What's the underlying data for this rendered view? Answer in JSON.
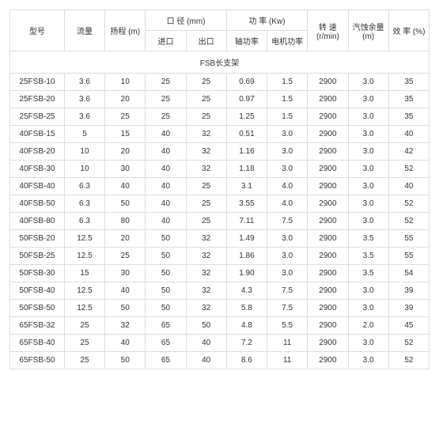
{
  "headers": {
    "model": "型号",
    "flow": "流量",
    "head": "扬程 (m)",
    "diameter": "口 径 (mm)",
    "diameter_in": "进口",
    "diameter_out": "出口",
    "power": "功 率 (Kw)",
    "power_shaft": "轴功率",
    "power_motor": "电机功率",
    "speed": "转 速\n(r/min)",
    "npsh": "汽蚀余量\n(m)",
    "eff": "效 率\n(%)"
  },
  "section_title": "FSB长支架",
  "rows": [
    {
      "model": "25FSB-10",
      "flow": "3.6",
      "head": "10",
      "in": "25",
      "out": "25",
      "shaft": "0.69",
      "motor": "1.5",
      "speed": "2900",
      "npsh": "3.0",
      "eff": "35"
    },
    {
      "model": "25FSB-20",
      "flow": "3.6",
      "head": "20",
      "in": "25",
      "out": "25",
      "shaft": "0.97",
      "motor": "1.5",
      "speed": "2900",
      "npsh": "3.0",
      "eff": "35"
    },
    {
      "model": "25FSB-25",
      "flow": "3.6",
      "head": "25",
      "in": "25",
      "out": "25",
      "shaft": "1.25",
      "motor": "1.5",
      "speed": "2900",
      "npsh": "3.0",
      "eff": "35"
    },
    {
      "model": "40FSB-15",
      "flow": "5",
      "head": "15",
      "in": "40",
      "out": "32",
      "shaft": "0.51",
      "motor": "3.0",
      "speed": "2900",
      "npsh": "3.0",
      "eff": "40"
    },
    {
      "model": "40FSB-20",
      "flow": "10",
      "head": "20",
      "in": "40",
      "out": "32",
      "shaft": "1.16",
      "motor": "3.0",
      "speed": "2900",
      "npsh": "3.0",
      "eff": "42"
    },
    {
      "model": "40FSB-30",
      "flow": "10",
      "head": "30",
      "in": "40",
      "out": "32",
      "shaft": "1.18",
      "motor": "3.0",
      "speed": "2900",
      "npsh": "3.0",
      "eff": "52"
    },
    {
      "model": "40FSB-40",
      "flow": "6.3",
      "head": "40",
      "in": "40",
      "out": "25",
      "shaft": "3.1",
      "motor": "4.0",
      "speed": "2900",
      "npsh": "3.0",
      "eff": "40"
    },
    {
      "model": "40FSB-50",
      "flow": "6.3",
      "head": "50",
      "in": "40",
      "out": "25",
      "shaft": "3.55",
      "motor": "4.0",
      "speed": "2900",
      "npsh": "3.0",
      "eff": "52"
    },
    {
      "model": "40FSB-80",
      "flow": "6.3",
      "head": "80",
      "in": "40",
      "out": "25",
      "shaft": "7.11",
      "motor": "7.5",
      "speed": "2900",
      "npsh": "3.0",
      "eff": "52"
    },
    {
      "model": "50FSB-20",
      "flow": "12.5",
      "head": "20",
      "in": "50",
      "out": "32",
      "shaft": "1.49",
      "motor": "3.0",
      "speed": "2900",
      "npsh": "3.5",
      "eff": "55"
    },
    {
      "model": "50FSB-25",
      "flow": "12.5",
      "head": "25",
      "in": "50",
      "out": "32",
      "shaft": "1.86",
      "motor": "3.0",
      "speed": "2900",
      "npsh": "3.5",
      "eff": "55"
    },
    {
      "model": "50FSB-30",
      "flow": "15",
      "head": "30",
      "in": "50",
      "out": "32",
      "shaft": "1.90",
      "motor": "3.0",
      "speed": "2900",
      "npsh": "3.5",
      "eff": "54"
    },
    {
      "model": "50FSB-40",
      "flow": "12.5",
      "head": "40",
      "in": "50",
      "out": "32",
      "shaft": "4.3",
      "motor": "7.5",
      "speed": "2900",
      "npsh": "3.0",
      "eff": "39"
    },
    {
      "model": "50FSB-50",
      "flow": "12.5",
      "head": "50",
      "in": "50",
      "out": "32",
      "shaft": "5.8",
      "motor": "7.5",
      "speed": "2900",
      "npsh": "3.0",
      "eff": "39"
    },
    {
      "model": "65FSB-32",
      "flow": "25",
      "head": "32",
      "in": "65",
      "out": "50",
      "shaft": "4.8",
      "motor": "5.5",
      "speed": "2900",
      "npsh": "2.0",
      "eff": "45"
    },
    {
      "model": "65FSB-40",
      "flow": "25",
      "head": "40",
      "in": "65",
      "out": "40",
      "shaft": "7.2",
      "motor": "11",
      "speed": "2900",
      "npsh": "3.0",
      "eff": "52"
    },
    {
      "model": "65FSB-50",
      "flow": "25",
      "head": "50",
      "in": "65",
      "out": "40",
      "shaft": "8.6",
      "motor": "11",
      "speed": "2900",
      "npsh": "3.0",
      "eff": "52"
    }
  ]
}
